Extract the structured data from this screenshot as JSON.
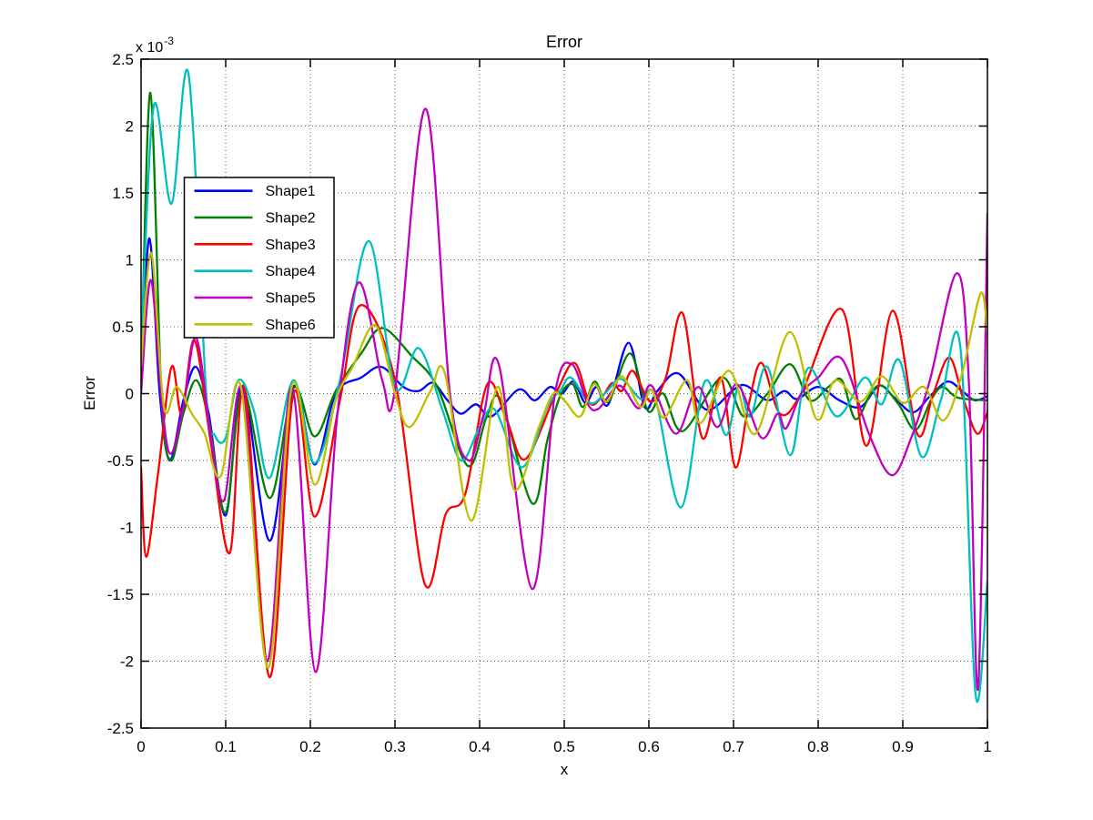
{
  "figure": {
    "title": "Error",
    "xlabel": "x",
    "ylabel": "Error",
    "y_scale_prefix": "x 10",
    "y_scale_exponent": "-3"
  },
  "legend": {
    "position": "upper-left-inside",
    "entries": [
      "Shape1",
      "Shape2",
      "Shape3",
      "Shape4",
      "Shape5",
      "Shape6"
    ]
  },
  "chart_data": {
    "type": "line",
    "title": "Error",
    "xlabel": "x",
    "ylabel": "Error",
    "xlim": [
      0,
      1
    ],
    "ylim": [
      -0.0025,
      0.0025
    ],
    "y_unit_multiplier": 0.001,
    "grid": "dotted",
    "x_tick_values": [
      0,
      0.1,
      0.2,
      0.3,
      0.4,
      0.5,
      0.6,
      0.7,
      0.8,
      0.9,
      1
    ],
    "x_tick_labels": [
      "0",
      "0.1",
      "0.2",
      "0.3",
      "0.4",
      "0.5",
      "0.6",
      "0.7",
      "0.8",
      "0.9",
      "1"
    ],
    "y_tick_values": [
      2.5,
      2,
      1.5,
      1,
      0.5,
      0,
      -0.5,
      -1,
      -1.5,
      -2,
      -2.5
    ],
    "y_tick_labels": [
      "2.5",
      "2",
      "1.5",
      "1",
      "0.5",
      "0",
      "-0.5",
      "-1",
      "-1.5",
      "-2",
      "-2.5"
    ],
    "series": [
      {
        "name": "Shape1",
        "color": "#0000ff",
        "points": [
          [
            0,
            0.15
          ],
          [
            0.01,
            1.16
          ],
          [
            0.022,
            0.0
          ],
          [
            0.034,
            -0.5
          ],
          [
            0.05,
            -0.05
          ],
          [
            0.065,
            0.2
          ],
          [
            0.08,
            -0.15
          ],
          [
            0.1,
            -0.91
          ],
          [
            0.12,
            0.05
          ],
          [
            0.152,
            -1.1
          ],
          [
            0.18,
            0.05
          ],
          [
            0.205,
            -0.53
          ],
          [
            0.23,
            0.0
          ],
          [
            0.26,
            0.12
          ],
          [
            0.284,
            0.2
          ],
          [
            0.31,
            0.05
          ],
          [
            0.328,
            0.02
          ],
          [
            0.345,
            0.08
          ],
          [
            0.362,
            -0.05
          ],
          [
            0.378,
            -0.15
          ],
          [
            0.396,
            -0.08
          ],
          [
            0.414,
            -0.17
          ],
          [
            0.446,
            0.03
          ],
          [
            0.465,
            -0.05
          ],
          [
            0.483,
            0.05
          ],
          [
            0.497,
            0.0
          ],
          [
            0.511,
            0.09
          ],
          [
            0.525,
            -0.07
          ],
          [
            0.538,
            0.05
          ],
          [
            0.552,
            -0.08
          ],
          [
            0.576,
            0.38
          ],
          [
            0.595,
            -0.1
          ],
          [
            0.61,
            0.02
          ],
          [
            0.635,
            0.15
          ],
          [
            0.668,
            -0.12
          ],
          [
            0.7,
            0.03
          ],
          [
            0.715,
            0.06
          ],
          [
            0.74,
            -0.05
          ],
          [
            0.76,
            0.02
          ],
          [
            0.775,
            -0.04
          ],
          [
            0.8,
            0.05
          ],
          [
            0.825,
            -0.05
          ],
          [
            0.85,
            -0.1
          ],
          [
            0.872,
            0.06
          ],
          [
            0.89,
            -0.03
          ],
          [
            0.912,
            -0.14
          ],
          [
            0.932,
            -0.02
          ],
          [
            0.953,
            0.09
          ],
          [
            0.97,
            0.02
          ],
          [
            0.985,
            -0.05
          ],
          [
            1.0,
            -0.02
          ]
        ]
      },
      {
        "name": "Shape2",
        "color": "#008000",
        "points": [
          [
            0,
            0.1
          ],
          [
            0.011,
            2.25
          ],
          [
            0.024,
            0.0
          ],
          [
            0.035,
            -0.5
          ],
          [
            0.05,
            -0.15
          ],
          [
            0.065,
            0.1
          ],
          [
            0.08,
            -0.2
          ],
          [
            0.1,
            -0.89
          ],
          [
            0.12,
            0.03
          ],
          [
            0.152,
            -0.78
          ],
          [
            0.18,
            0.04
          ],
          [
            0.205,
            -0.32
          ],
          [
            0.23,
            0.02
          ],
          [
            0.26,
            0.3
          ],
          [
            0.285,
            0.49
          ],
          [
            0.32,
            0.28
          ],
          [
            0.35,
            0.05
          ],
          [
            0.386,
            -0.54
          ],
          [
            0.408,
            -0.18
          ],
          [
            0.425,
            -0.05
          ],
          [
            0.462,
            -0.82
          ],
          [
            0.48,
            -0.35
          ],
          [
            0.495,
            -0.02
          ],
          [
            0.51,
            0.07
          ],
          [
            0.522,
            -0.1
          ],
          [
            0.536,
            0.09
          ],
          [
            0.552,
            -0.06
          ],
          [
            0.578,
            0.3
          ],
          [
            0.599,
            -0.13
          ],
          [
            0.617,
            0.0
          ],
          [
            0.64,
            -0.28
          ],
          [
            0.686,
            0.12
          ],
          [
            0.712,
            -0.17
          ],
          [
            0.74,
            0.0
          ],
          [
            0.767,
            0.22
          ],
          [
            0.79,
            -0.05
          ],
          [
            0.812,
            0.05
          ],
          [
            0.828,
            0.1
          ],
          [
            0.844,
            -0.19
          ],
          [
            0.862,
            0.0
          ],
          [
            0.875,
            0.06
          ],
          [
            0.895,
            -0.08
          ],
          [
            0.915,
            -0.27
          ],
          [
            0.934,
            -0.04
          ],
          [
            0.947,
            0.05
          ],
          [
            0.965,
            -0.03
          ],
          [
            1.0,
            -0.05
          ]
        ]
      },
      {
        "name": "Shape3",
        "color": "#ff0000",
        "points": [
          [
            0,
            -0.55
          ],
          [
            0.006,
            -1.22
          ],
          [
            0.02,
            -0.6
          ],
          [
            0.036,
            0.2
          ],
          [
            0.048,
            -0.15
          ],
          [
            0.063,
            0.4
          ],
          [
            0.082,
            -0.35
          ],
          [
            0.105,
            -1.19
          ],
          [
            0.122,
            0.05
          ],
          [
            0.152,
            -2.12
          ],
          [
            0.18,
            0.0
          ],
          [
            0.205,
            -0.92
          ],
          [
            0.235,
            -0.05
          ],
          [
            0.259,
            0.66
          ],
          [
            0.3,
            0.1
          ],
          [
            0.335,
            -1.42
          ],
          [
            0.36,
            -0.9
          ],
          [
            0.383,
            -0.75
          ],
          [
            0.409,
            0.07
          ],
          [
            0.432,
            -0.2
          ],
          [
            0.454,
            -0.49
          ],
          [
            0.49,
            0.0
          ],
          [
            0.512,
            0.23
          ],
          [
            0.53,
            -0.07
          ],
          [
            0.545,
            -0.02
          ],
          [
            0.557,
            0.08
          ],
          [
            0.568,
            0.02
          ],
          [
            0.581,
            0.17
          ],
          [
            0.602,
            -0.06
          ],
          [
            0.62,
            0.12
          ],
          [
            0.64,
            0.6
          ],
          [
            0.663,
            -0.33
          ],
          [
            0.685,
            0.12
          ],
          [
            0.702,
            -0.55
          ],
          [
            0.718,
            -0.08
          ],
          [
            0.733,
            0.23
          ],
          [
            0.755,
            -0.15
          ],
          [
            0.78,
            0.0
          ],
          [
            0.828,
            0.63
          ],
          [
            0.857,
            -0.39
          ],
          [
            0.888,
            0.62
          ],
          [
            0.917,
            -0.3
          ],
          [
            0.936,
            0.0
          ],
          [
            0.955,
            0.27
          ],
          [
            0.972,
            -0.05
          ],
          [
            0.988,
            -0.3
          ],
          [
            1.0,
            -0.14
          ]
        ]
      },
      {
        "name": "Shape4",
        "color": "#00bfbf",
        "points": [
          [
            0,
            0.3
          ],
          [
            0.015,
            2.15
          ],
          [
            0.036,
            1.42
          ],
          [
            0.056,
            2.39
          ],
          [
            0.077,
            0.0
          ],
          [
            0.087,
            -0.31
          ],
          [
            0.1,
            -0.33
          ],
          [
            0.115,
            0.1
          ],
          [
            0.133,
            -0.12
          ],
          [
            0.152,
            -0.63
          ],
          [
            0.18,
            0.1
          ],
          [
            0.205,
            -0.52
          ],
          [
            0.235,
            0.1
          ],
          [
            0.269,
            1.14
          ],
          [
            0.3,
            0.05
          ],
          [
            0.328,
            0.34
          ],
          [
            0.356,
            -0.12
          ],
          [
            0.378,
            -0.5
          ],
          [
            0.4,
            -0.25
          ],
          [
            0.418,
            -0.12
          ],
          [
            0.45,
            -0.55
          ],
          [
            0.48,
            -0.1
          ],
          [
            0.495,
            0.02
          ],
          [
            0.508,
            0.12
          ],
          [
            0.53,
            -0.07
          ],
          [
            0.548,
            0.0
          ],
          [
            0.567,
            0.11
          ],
          [
            0.59,
            -0.04
          ],
          [
            0.607,
            -0.02
          ],
          [
            0.638,
            -0.85
          ],
          [
            0.666,
            0.09
          ],
          [
            0.691,
            -0.31
          ],
          [
            0.706,
            0.06
          ],
          [
            0.72,
            -0.17
          ],
          [
            0.74,
            0.2
          ],
          [
            0.767,
            -0.46
          ],
          [
            0.788,
            0.19
          ],
          [
            0.822,
            -0.17
          ],
          [
            0.855,
            0.12
          ],
          [
            0.875,
            -0.08
          ],
          [
            0.896,
            0.25
          ],
          [
            0.922,
            -0.47
          ],
          [
            0.945,
            -0.05
          ],
          [
            0.968,
            0.35
          ],
          [
            0.986,
            -2.25
          ],
          [
            1.0,
            -1.4
          ]
        ]
      },
      {
        "name": "Shape5",
        "color": "#bf00bf",
        "points": [
          [
            0,
            0.0
          ],
          [
            0.0115,
            0.85
          ],
          [
            0.025,
            -0.1
          ],
          [
            0.035,
            -0.45
          ],
          [
            0.05,
            -0.1
          ],
          [
            0.065,
            0.42
          ],
          [
            0.082,
            -0.3
          ],
          [
            0.098,
            -0.8
          ],
          [
            0.12,
            0.03
          ],
          [
            0.149,
            -2.0
          ],
          [
            0.178,
            0.05
          ],
          [
            0.206,
            -2.08
          ],
          [
            0.232,
            -0.15
          ],
          [
            0.257,
            0.83
          ],
          [
            0.285,
            0.1
          ],
          [
            0.3,
            0.03
          ],
          [
            0.336,
            2.13
          ],
          [
            0.365,
            0.0
          ],
          [
            0.387,
            -0.5
          ],
          [
            0.405,
            -0.15
          ],
          [
            0.423,
            0.21
          ],
          [
            0.462,
            -1.46
          ],
          [
            0.489,
            0.0
          ],
          [
            0.509,
            0.22
          ],
          [
            0.528,
            -0.08
          ],
          [
            0.541,
            -0.11
          ],
          [
            0.565,
            0.06
          ],
          [
            0.588,
            -0.11
          ],
          [
            0.603,
            0.06
          ],
          [
            0.632,
            -0.3
          ],
          [
            0.658,
            0.05
          ],
          [
            0.681,
            -0.25
          ],
          [
            0.704,
            0.07
          ],
          [
            0.733,
            -0.33
          ],
          [
            0.752,
            -0.15
          ],
          [
            0.762,
            -0.26
          ],
          [
            0.78,
            0.0
          ],
          [
            0.8,
            0.12
          ],
          [
            0.828,
            0.26
          ],
          [
            0.86,
            -0.3
          ],
          [
            0.887,
            -0.61
          ],
          [
            0.91,
            -0.33
          ],
          [
            0.932,
            0.1
          ],
          [
            0.964,
            0.9
          ],
          [
            0.978,
            0.1
          ],
          [
            0.989,
            -2.2
          ],
          [
            1.0,
            1.35
          ]
        ]
      },
      {
        "name": "Shape6",
        "color": "#bfbf00",
        "points": [
          [
            0,
            0.2
          ],
          [
            0.012,
            1.05
          ],
          [
            0.027,
            -0.1
          ],
          [
            0.042,
            0.05
          ],
          [
            0.06,
            -0.15
          ],
          [
            0.075,
            -0.3
          ],
          [
            0.094,
            -0.62
          ],
          [
            0.118,
            0.05
          ],
          [
            0.15,
            -2.05
          ],
          [
            0.178,
            0.05
          ],
          [
            0.205,
            -0.68
          ],
          [
            0.23,
            -0.05
          ],
          [
            0.25,
            0.2
          ],
          [
            0.277,
            0.51
          ],
          [
            0.3,
            0.0
          ],
          [
            0.317,
            -0.25
          ],
          [
            0.342,
            0.02
          ],
          [
            0.359,
            0.15
          ],
          [
            0.39,
            -0.95
          ],
          [
            0.421,
            0.05
          ],
          [
            0.441,
            -0.72
          ],
          [
            0.47,
            -0.25
          ],
          [
            0.487,
            0.0
          ],
          [
            0.5,
            -0.05
          ],
          [
            0.519,
            -0.17
          ],
          [
            0.535,
            0.07
          ],
          [
            0.55,
            -0.06
          ],
          [
            0.568,
            0.13
          ],
          [
            0.59,
            -0.1
          ],
          [
            0.603,
            0.03
          ],
          [
            0.618,
            -0.18
          ],
          [
            0.645,
            0.1
          ],
          [
            0.661,
            -0.22
          ],
          [
            0.695,
            0.17
          ],
          [
            0.726,
            -0.3
          ],
          [
            0.766,
            0.46
          ],
          [
            0.798,
            -0.19
          ],
          [
            0.82,
            0.1
          ],
          [
            0.85,
            -0.06
          ],
          [
            0.875,
            0.13
          ],
          [
            0.9,
            -0.07
          ],
          [
            0.925,
            0.05
          ],
          [
            0.948,
            -0.2
          ],
          [
            0.97,
            0.15
          ],
          [
            0.992,
            0.75
          ],
          [
            1.0,
            0.45
          ]
        ]
      }
    ]
  }
}
